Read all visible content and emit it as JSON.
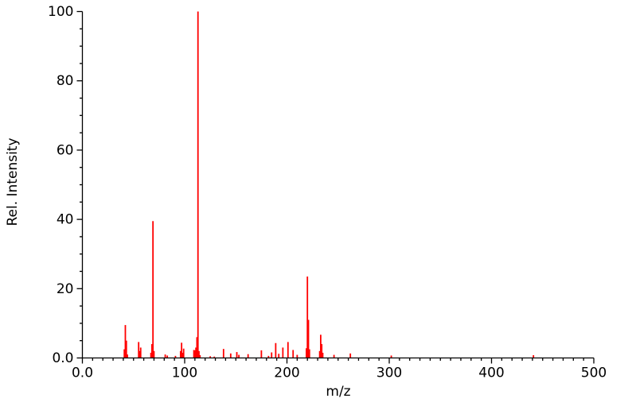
{
  "chart_data": {
    "type": "bar",
    "subtype": "mass-spectrum-stick-plot",
    "title": "",
    "xlabel": "m/z",
    "ylabel": "Rel. Intensity",
    "xlim": [
      0,
      500
    ],
    "ylim": [
      0,
      100
    ],
    "x_major_ticks": [
      0,
      100,
      200,
      300,
      400,
      500
    ],
    "x_tick_labels": [
      "0.0",
      "100",
      "200",
      "300",
      "400",
      "500"
    ],
    "x_minor_step": 10,
    "y_major_ticks": [
      0,
      20,
      40,
      60,
      80,
      100
    ],
    "y_tick_labels": [
      "0.0",
      "20",
      "40",
      "60",
      "80",
      "100"
    ],
    "y_minor_step": 5,
    "grid": false,
    "legend": null,
    "bar_color": "#ff0000",
    "axis_color": "#000000",
    "background_color": "#ffffff",
    "peaks": [
      [
        41,
        2.5
      ],
      [
        42,
        9.5
      ],
      [
        43,
        5.0
      ],
      [
        44,
        1.0
      ],
      [
        55,
        4.6
      ],
      [
        56,
        2.0
      ],
      [
        57,
        3.0
      ],
      [
        67,
        1.5
      ],
      [
        68,
        4.0
      ],
      [
        69,
        39.5
      ],
      [
        70,
        2.0
      ],
      [
        81,
        1.0
      ],
      [
        83,
        0.7
      ],
      [
        91,
        0.6
      ],
      [
        96,
        2.0
      ],
      [
        97,
        4.4
      ],
      [
        98,
        1.5
      ],
      [
        99,
        2.7
      ],
      [
        109,
        2.3
      ],
      [
        110,
        2.2
      ],
      [
        111,
        3.0
      ],
      [
        112,
        6.0
      ],
      [
        113,
        100.0
      ],
      [
        114,
        2.0
      ],
      [
        115,
        0.8
      ],
      [
        125,
        0.5
      ],
      [
        129,
        0.4
      ],
      [
        138,
        2.6
      ],
      [
        145,
        1.3
      ],
      [
        151,
        1.7
      ],
      [
        153,
        0.9
      ],
      [
        162,
        1.1
      ],
      [
        175,
        2.2
      ],
      [
        182,
        0.6
      ],
      [
        185,
        1.6
      ],
      [
        189,
        4.3
      ],
      [
        192,
        1.2
      ],
      [
        196,
        3.0
      ],
      [
        201,
        4.6
      ],
      [
        206,
        2.3
      ],
      [
        210,
        0.9
      ],
      [
        219,
        2.8
      ],
      [
        220,
        23.5
      ],
      [
        221,
        11.0
      ],
      [
        222,
        2.5
      ],
      [
        232,
        2.0
      ],
      [
        233,
        6.7
      ],
      [
        234,
        4.0
      ],
      [
        235,
        1.5
      ],
      [
        246,
        0.9
      ],
      [
        262,
        1.3
      ],
      [
        302,
        0.7
      ],
      [
        441,
        0.8
      ]
    ]
  }
}
